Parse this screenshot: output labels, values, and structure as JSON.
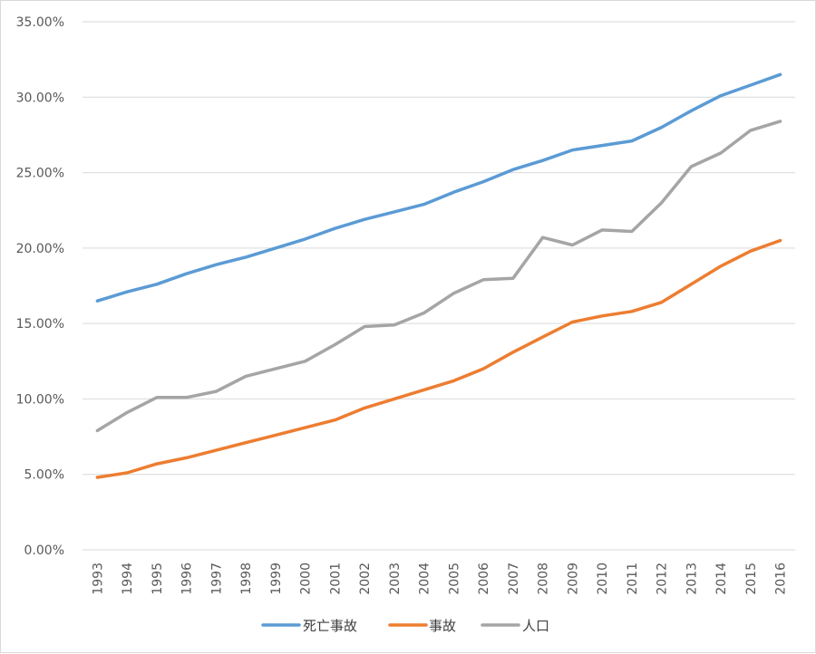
{
  "chart_data": {
    "type": "line",
    "title": "",
    "xlabel": "",
    "ylabel": "",
    "ylim": [
      0,
      35
    ],
    "y_ticks": [
      "0.00%",
      "5.00%",
      "10.00%",
      "15.00%",
      "20.00%",
      "25.00%",
      "30.00%",
      "35.00%"
    ],
    "y_tick_values": [
      0,
      5,
      10,
      15,
      20,
      25,
      30,
      35
    ],
    "grid": true,
    "legend_position": "bottom",
    "categories": [
      "1993",
      "1994",
      "1995",
      "1996",
      "1997",
      "1998",
      "1999",
      "2000",
      "2001",
      "2002",
      "2003",
      "2004",
      "2005",
      "2006",
      "2007",
      "2008",
      "2009",
      "2010",
      "2011",
      "2012",
      "2013",
      "2014",
      "2015",
      "2016"
    ],
    "series": [
      {
        "name": "死亡事故",
        "color": "#5b9bd5",
        "values": [
          16.5,
          17.1,
          17.6,
          18.3,
          18.9,
          19.4,
          20.0,
          20.6,
          21.3,
          21.9,
          22.4,
          22.9,
          23.7,
          24.4,
          25.2,
          25.8,
          26.5,
          26.8,
          27.1,
          28.0,
          29.1,
          30.1,
          30.8,
          31.5
        ],
        "values_percent_strings": []
      },
      {
        "name": "事故",
        "color": "#ed7d31",
        "values": [
          4.8,
          5.1,
          5.7,
          6.1,
          6.6,
          7.1,
          7.6,
          8.1,
          8.6,
          9.4,
          10.0,
          10.6,
          11.2,
          12.0,
          13.1,
          14.1,
          15.1,
          15.5,
          15.8,
          16.4,
          17.6,
          18.8,
          19.8,
          20.5
        ],
        "values_percent_strings": []
      },
      {
        "name": "人口",
        "color": "#a5a5a5",
        "values": [
          7.9,
          9.1,
          10.1,
          10.1,
          10.5,
          11.5,
          12.0,
          12.5,
          13.6,
          14.8,
          14.9,
          15.7,
          17.0,
          17.9,
          18.0,
          20.7,
          20.2,
          21.2,
          21.1,
          23.0,
          25.4,
          26.3,
          27.8,
          28.4
        ],
        "values_percent_strings": []
      }
    ]
  }
}
